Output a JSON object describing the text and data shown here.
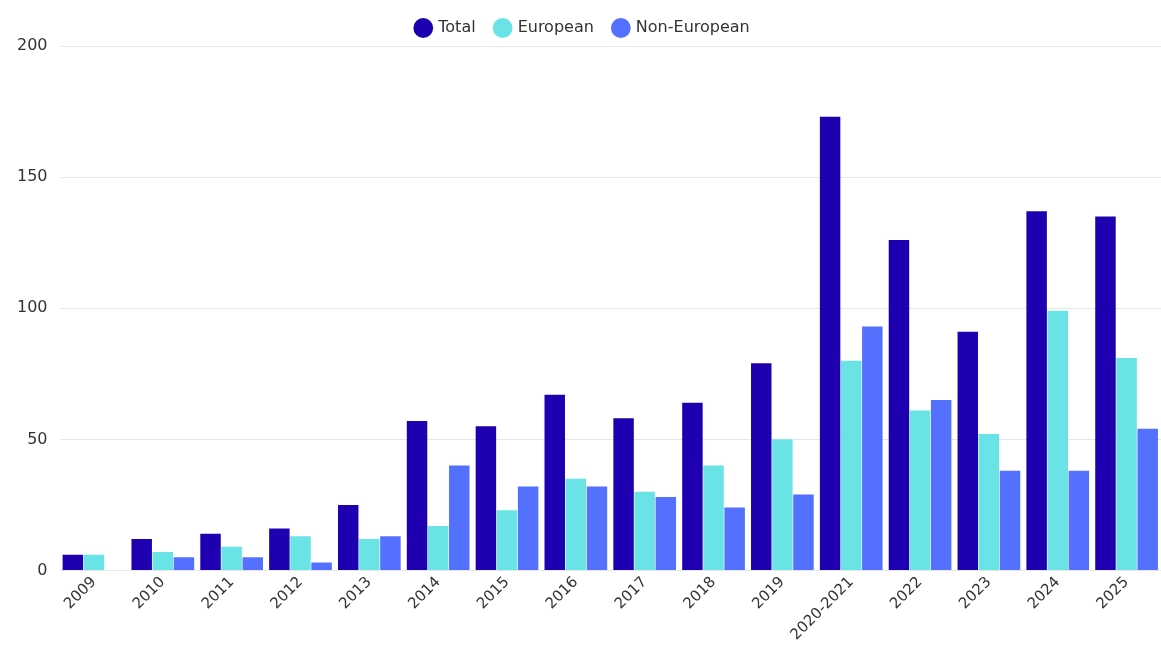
{
  "chart_data": {
    "type": "bar",
    "categories": [
      "2009",
      "2010",
      "2011",
      "2012",
      "2013",
      "2014",
      "2015",
      "2016",
      "2017",
      "2018",
      "2019",
      "2020-2021",
      "2022",
      "2023",
      "2024",
      "2025"
    ],
    "series": [
      {
        "name": "Total",
        "color": "#1f00b0",
        "values": [
          6,
          12,
          14,
          16,
          25,
          57,
          55,
          67,
          58,
          64,
          79,
          173,
          126,
          91,
          137,
          135
        ]
      },
      {
        "name": "European",
        "color": "#6ae3e6",
        "values": [
          6,
          7,
          9,
          13,
          12,
          17,
          23,
          35,
          30,
          40,
          50,
          80,
          61,
          52,
          99,
          81
        ]
      },
      {
        "name": "Non-European",
        "color": "#5470ff",
        "values": [
          0,
          5,
          5,
          3,
          13,
          40,
          32,
          32,
          28,
          24,
          29,
          93,
          65,
          38,
          38,
          54
        ]
      }
    ],
    "ylim": [
      0,
      200
    ],
    "yticks": [
      0,
      50,
      100,
      150,
      200
    ],
    "grid": "y",
    "legend": "top"
  }
}
